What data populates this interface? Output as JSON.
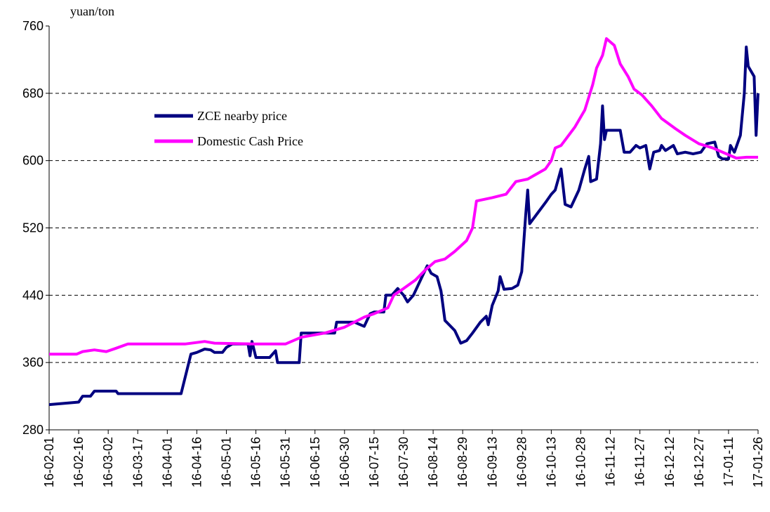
{
  "chart_data": {
    "type": "line",
    "y_label": "yuan/ton",
    "ylim": [
      280,
      760
    ],
    "yticks": [
      280,
      360,
      440,
      520,
      600,
      680,
      760
    ],
    "xlim": [
      "16-02-01",
      "17-01-26"
    ],
    "xticks": [
      "16-02-01",
      "16-02-16",
      "16-03-02",
      "16-03-17",
      "16-04-01",
      "16-04-16",
      "16-05-01",
      "16-05-16",
      "16-05-31",
      "16-06-15",
      "16-06-30",
      "16-07-15",
      "16-07-30",
      "16-08-14",
      "16-08-29",
      "16-09-13",
      "16-09-28",
      "16-10-13",
      "16-10-28",
      "16-11-12",
      "16-11-27",
      "16-12-12",
      "16-12-27",
      "17-01-11",
      "17-01-26"
    ],
    "grid": true,
    "series": [
      {
        "name": "ZCE nearby price",
        "color": "#000080",
        "x": [
          "16-02-01",
          "16-02-16",
          "16-02-18",
          "16-02-22",
          "16-02-24",
          "16-03-02",
          "16-03-06",
          "16-03-07",
          "16-04-08",
          "16-04-13",
          "16-04-16",
          "16-04-20",
          "16-04-23",
          "16-04-25",
          "16-04-29",
          "16-05-01",
          "16-05-04",
          "16-05-12",
          "16-05-13",
          "16-05-14",
          "16-05-16",
          "16-05-23",
          "16-05-26",
          "16-05-27",
          "16-06-07",
          "16-06-08",
          "16-06-25",
          "16-06-26",
          "16-07-05",
          "16-07-10",
          "16-07-13",
          "16-07-15",
          "16-07-20",
          "16-07-21",
          "16-07-24",
          "16-07-27",
          "16-07-30",
          "16-08-01",
          "16-08-04",
          "16-08-07",
          "16-08-11",
          "16-08-13",
          "16-08-16",
          "16-08-18",
          "16-08-20",
          "16-08-25",
          "16-08-28",
          "16-08-31",
          "16-09-03",
          "16-09-07",
          "16-09-10",
          "16-09-11",
          "16-09-13",
          "16-09-16",
          "16-09-17",
          "16-09-19",
          "16-09-23",
          "16-09-26",
          "16-09-28",
          "16-09-30",
          "16-10-01",
          "16-10-02",
          "16-10-10",
          "16-10-13",
          "16-10-15",
          "16-10-18",
          "16-10-20",
          "16-10-23",
          "16-10-27",
          "16-10-30",
          "16-11-01",
          "16-11-02",
          "16-11-05",
          "16-11-07",
          "16-11-08",
          "16-11-09",
          "16-11-10",
          "16-11-17",
          "16-11-19",
          "16-11-22",
          "16-11-25",
          "16-11-27",
          "16-11-30",
          "16-12-02",
          "16-12-04",
          "16-12-07",
          "16-12-08",
          "16-12-10",
          "16-12-14",
          "16-12-16",
          "16-12-20",
          "16-12-24",
          "16-12-28",
          "16-12-31",
          "17-01-04",
          "17-01-06",
          "17-01-08",
          "17-01-11",
          "17-01-12",
          "17-01-14",
          "17-01-17",
          "17-01-19",
          "17-01-20",
          "17-01-21",
          "17-01-24",
          "17-01-25",
          "17-01-26"
        ],
        "values": [
          310,
          313,
          320,
          320,
          326,
          326,
          326,
          323,
          323,
          370,
          372,
          376,
          375,
          372,
          372,
          378,
          382,
          382,
          368,
          385,
          366,
          366,
          374,
          360,
          360,
          395,
          395,
          408,
          408,
          403,
          418,
          420,
          420,
          440,
          440,
          448,
          440,
          432,
          440,
          455,
          475,
          466,
          462,
          445,
          410,
          398,
          383,
          386,
          395,
          408,
          415,
          405,
          428,
          445,
          462,
          447,
          448,
          452,
          468,
          535,
          565,
          525,
          550,
          560,
          565,
          590,
          548,
          545,
          565,
          590,
          605,
          575,
          578,
          620,
          665,
          625,
          636,
          636,
          610,
          610,
          618,
          615,
          618,
          590,
          610,
          612,
          618,
          612,
          618,
          608,
          610,
          608,
          610,
          620,
          622,
          605,
          602,
          602,
          618,
          610,
          630,
          680,
          735,
          712,
          700,
          630,
          680
        ]
      },
      {
        "name": "Domestic Cash Price",
        "color": "#ff00ff",
        "x": [
          "16-02-01",
          "16-02-15",
          "16-02-18",
          "16-02-24",
          "16-03-01",
          "16-03-06",
          "16-03-12",
          "16-04-10",
          "16-04-20",
          "16-04-25",
          "16-05-15",
          "16-05-31",
          "16-06-03",
          "16-06-08",
          "16-06-20",
          "16-06-30",
          "16-07-05",
          "16-07-10",
          "16-07-15",
          "16-07-22",
          "16-07-25",
          "16-07-30",
          "16-08-05",
          "16-08-10",
          "16-08-15",
          "16-08-20",
          "16-08-25",
          "16-08-31",
          "16-09-03",
          "16-09-05",
          "16-09-13",
          "16-09-20",
          "16-09-25",
          "16-10-01",
          "16-10-10",
          "16-10-13",
          "16-10-15",
          "16-10-18",
          "16-10-25",
          "16-10-30",
          "16-11-03",
          "16-11-05",
          "16-11-08",
          "16-11-10",
          "16-11-14",
          "16-11-17",
          "16-11-21",
          "16-11-24",
          "16-11-28",
          "16-12-03",
          "16-12-08",
          "16-12-15",
          "16-12-20",
          "16-12-27",
          "17-01-03",
          "17-01-10",
          "17-01-15",
          "17-01-20",
          "17-01-26"
        ],
        "values": [
          370,
          370,
          373,
          375,
          373,
          377,
          382,
          382,
          385,
          383,
          382,
          382,
          385,
          390,
          395,
          402,
          408,
          414,
          418,
          425,
          440,
          448,
          458,
          470,
          480,
          483,
          492,
          505,
          520,
          552,
          556,
          560,
          575,
          578,
          590,
          600,
          615,
          618,
          640,
          660,
          690,
          710,
          725,
          745,
          737,
          715,
          700,
          685,
          678,
          665,
          650,
          638,
          630,
          620,
          615,
          608,
          603,
          604,
          604
        ]
      }
    ]
  }
}
